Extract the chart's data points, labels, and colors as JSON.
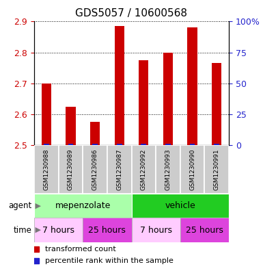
{
  "title": "GDS5057 / 10600568",
  "samples": [
    "GSM1230988",
    "GSM1230989",
    "GSM1230986",
    "GSM1230987",
    "GSM1230992",
    "GSM1230993",
    "GSM1230990",
    "GSM1230991"
  ],
  "transformed_counts": [
    2.7,
    2.625,
    2.575,
    2.885,
    2.775,
    2.8,
    2.88,
    2.765
  ],
  "ylim": [
    2.5,
    2.9
  ],
  "yticks_left": [
    2.5,
    2.6,
    2.7,
    2.8,
    2.9
  ],
  "yticks_right": [
    0,
    25,
    50,
    75,
    100
  ],
  "bar_color_red": "#cc0000",
  "bar_color_blue": "#2222cc",
  "bar_width": 0.4,
  "blue_bar_height": 0.006,
  "agent_row": [
    {
      "label": "mepenzolate",
      "start": 0,
      "end": 4,
      "color": "#aaffaa"
    },
    {
      "label": "vehicle",
      "start": 4,
      "end": 8,
      "color": "#22cc22"
    }
  ],
  "time_row": [
    {
      "label": "7 hours",
      "start": 0,
      "end": 2,
      "color": "#ffccff"
    },
    {
      "label": "25 hours",
      "start": 2,
      "end": 4,
      "color": "#dd44dd"
    },
    {
      "label": "7 hours",
      "start": 4,
      "end": 6,
      "color": "#ffccff"
    },
    {
      "label": "25 hours",
      "start": 6,
      "end": 8,
      "color": "#dd44dd"
    }
  ],
  "legend_items": [
    {
      "color": "#cc0000",
      "label": "transformed count"
    },
    {
      "color": "#2222cc",
      "label": "percentile rank within the sample"
    }
  ],
  "agent_label": "agent",
  "time_label": "time",
  "left_axis_color": "#cc0000",
  "right_axis_color": "#2222cc",
  "sample_box_color": "#cccccc"
}
